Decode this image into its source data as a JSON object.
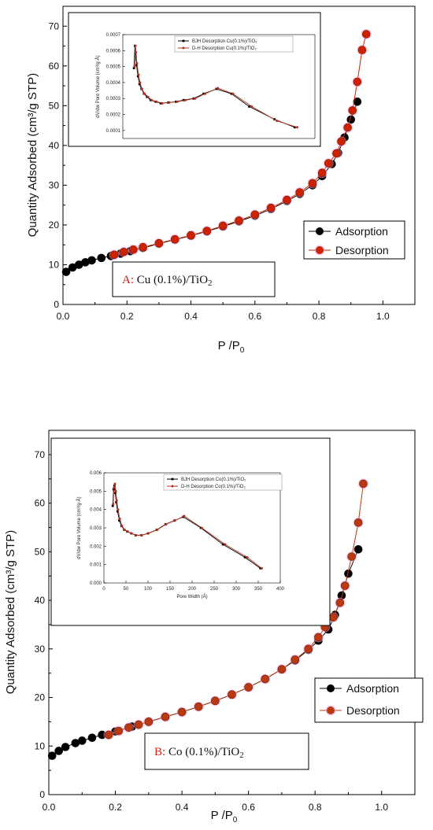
{
  "chart_data": [
    {
      "id": "A",
      "type": "scatter",
      "xlabel_main": "P /P",
      "xlabel_sub": "0",
      "ylabel": "Quantity Adsorbed (cm³/g STP)",
      "xlim": [
        0,
        1.1
      ],
      "ylim": [
        0,
        75
      ],
      "xticks": [
        "0.0",
        "0.2",
        "0.4",
        "0.6",
        "0.8",
        "1.0"
      ],
      "yticks": [
        "0",
        "10",
        "20",
        "30",
        "40",
        "50",
        "60",
        "70"
      ],
      "annotation_letter": "A:",
      "annotation_text": " Cu (0.1%)/TiO",
      "annotation_sub": "2",
      "legend": [
        "Adsorption",
        "Desorption"
      ],
      "series": [
        {
          "name": "Adsorption",
          "color": "#000000",
          "x": [
            0.01,
            0.03,
            0.05,
            0.07,
            0.09,
            0.12,
            0.15,
            0.18,
            0.21,
            0.25,
            0.3,
            0.35,
            0.4,
            0.45,
            0.5,
            0.55,
            0.6,
            0.65,
            0.7,
            0.74,
            0.78,
            0.81,
            0.84,
            0.86,
            0.88,
            0.9,
            0.92
          ],
          "y": [
            8.2,
            9.3,
            10,
            10.6,
            11.1,
            11.7,
            12.2,
            12.8,
            13.4,
            14.2,
            15.3,
            16.3,
            17.3,
            18.4,
            19.6,
            20.9,
            22.3,
            24,
            26,
            27.8,
            30,
            32.3,
            35.3,
            38.1,
            42,
            46.5,
            51
          ]
        },
        {
          "name": "Desorption",
          "color": "#cc2200",
          "x": [
            0.16,
            0.19,
            0.22,
            0.25,
            0.3,
            0.35,
            0.4,
            0.45,
            0.5,
            0.55,
            0.6,
            0.65,
            0.7,
            0.74,
            0.78,
            0.81,
            0.83,
            0.855,
            0.87,
            0.89,
            0.905,
            0.92,
            0.935,
            0.948
          ],
          "y": [
            12.5,
            13.2,
            13.8,
            14.4,
            15.4,
            16.4,
            17.4,
            18.5,
            19.8,
            21.1,
            22.6,
            24.3,
            26.3,
            28.2,
            30.5,
            33.1,
            35.5,
            38,
            41,
            44.5,
            48.8,
            56,
            64,
            68
          ]
        }
      ],
      "inset": {
        "ylabel": "dV/dw Pore Volume (cm³/g·Å)",
        "ylim": [
          5e-05,
          0.0007
        ],
        "xlim": [
          0,
          380
        ],
        "yticks": [
          "0.0001",
          "0.0002",
          "0.0003",
          "0.0004",
          "0.0005",
          "0.0006",
          "0.0007"
        ],
        "legend": [
          "BJH Desorption Cu(0.1%)/TiO₂",
          "D-H Desorption Cu(0.1%)/TiO₂"
        ],
        "series": [
          {
            "name": "BJH Desorption Cu(0.1%)/TiO₂",
            "color": "#000000",
            "x": [
              22,
              24,
              25,
              27,
              30,
              33,
              37,
              42,
              48,
              55,
              65,
              75,
              90,
              105,
              120,
              140,
              160,
              185,
              215,
              250,
              300,
              340
            ],
            "y": [
              0.00049,
              0.00063,
              0.00058,
              0.00051,
              0.00044,
              0.00039,
              0.00036,
              0.00033,
              0.00031,
              0.00029,
              0.00028,
              0.00027,
              0.000275,
              0.00028,
              0.00029,
              0.0003,
              0.00033,
              0.00036,
              0.00033,
              0.00025,
              0.00017,
              0.00012
            ]
          },
          {
            "name": "D-H Desorption Cu(0.1%)/TiO₂",
            "color": "#b03020",
            "x": [
              23,
              25,
              26,
              28,
              31,
              34,
              38,
              43,
              50,
              57,
              67,
              78,
              92,
              108,
              124,
              143,
              163,
              188,
              218,
              255,
              305,
              345
            ],
            "y": [
              0.0005,
              0.00063,
              0.00059,
              0.00052,
              0.00045,
              0.0004,
              0.00036,
              0.00033,
              0.00031,
              0.00029,
              0.00028,
              0.00027,
              0.000275,
              0.00028,
              0.00029,
              0.0003,
              0.00033,
              0.000365,
              0.00033,
              0.00025,
              0.00016,
              0.00012
            ]
          }
        ]
      }
    },
    {
      "id": "B",
      "type": "scatter",
      "xlabel_main": "P /P",
      "xlabel_sub": "0",
      "ylabel": "Quantity Adsorbed (cm³/g STP)",
      "xlim": [
        0,
        1.1
      ],
      "ylim": [
        0,
        75
      ],
      "xticks": [
        "0.0",
        "0.2",
        "0.4",
        "0.6",
        "0.8",
        "1.0"
      ],
      "yticks": [
        "0",
        "10",
        "20",
        "30",
        "40",
        "50",
        "60",
        "70"
      ],
      "annotation_letter": "B:",
      "annotation_text": " Co (0.1%)/TiO",
      "annotation_sub": "2",
      "legend": [
        "Adsorption",
        "Desorption"
      ],
      "series": [
        {
          "name": "Adsorption",
          "color": "#000000",
          "x": [
            0.01,
            0.03,
            0.05,
            0.08,
            0.1,
            0.13,
            0.16,
            0.2,
            0.25,
            0.3,
            0.35,
            0.4,
            0.45,
            0.5,
            0.55,
            0.6,
            0.65,
            0.7,
            0.74,
            0.78,
            0.81,
            0.84,
            0.86,
            0.88,
            0.9,
            0.93
          ],
          "y": [
            8,
            9,
            9.8,
            10.6,
            11.1,
            11.7,
            12.3,
            13,
            14,
            15,
            16,
            17,
            18.1,
            19.3,
            20.6,
            22.1,
            23.8,
            25.8,
            27.6,
            29.8,
            31.7,
            34,
            37,
            41,
            45.5,
            50.5
          ]
        },
        {
          "name": "Desorption",
          "color": "#b83a10",
          "x": [
            0.18,
            0.21,
            0.24,
            0.27,
            0.3,
            0.35,
            0.4,
            0.45,
            0.5,
            0.55,
            0.6,
            0.65,
            0.7,
            0.74,
            0.78,
            0.81,
            0.83,
            0.855,
            0.875,
            0.89,
            0.91,
            0.93,
            0.945
          ],
          "y": [
            12.3,
            13.1,
            13.8,
            14.4,
            15,
            16,
            17,
            18.1,
            19.3,
            20.6,
            22.1,
            23.8,
            25.8,
            27.8,
            30,
            32.4,
            34.5,
            36.5,
            39.5,
            43,
            49,
            56,
            64
          ]
        }
      ],
      "inset": {
        "ylabel": "dV/dw Pore Volume (cm³/g·Å)",
        "xlabel": "Pore Width (Å)",
        "xlim": [
          0,
          400
        ],
        "ylim": [
          0,
          0.006
        ],
        "xticks": [
          "0",
          "50",
          "100",
          "150",
          "200",
          "250",
          "300",
          "350",
          "400"
        ],
        "yticks": [
          "0.000",
          "0.001",
          "0.002",
          "0.003",
          "0.004",
          "0.005",
          "0.006"
        ],
        "legend": [
          "BJH Desorption Co(0.1%)/TiO₂",
          "D-H Desorption Co(0.1%)/TiO₂"
        ],
        "series": [
          {
            "name": "BJH Desorption Co(0.1%)/TiO₂",
            "color": "#000000",
            "x": [
              20,
              22,
              24,
              26,
              28,
              31,
              35,
              40,
              46,
              53,
              62,
              72,
              85,
              100,
              120,
              140,
              160,
              180,
              220,
              270,
              320,
              355
            ],
            "y": [
              0.0042,
              0.0051,
              0.0053,
              0.0049,
              0.0044,
              0.0039,
              0.0034,
              0.0031,
              0.0029,
              0.0028,
              0.0027,
              0.0026,
              0.0026,
              0.0027,
              0.0029,
              0.0032,
              0.0034,
              0.0036,
              0.003,
              0.0021,
              0.0014,
              0.0008
            ]
          },
          {
            "name": "D-H Desorption Co(0.1%)/TiO₂",
            "color": "#b03020",
            "x": [
              21,
              23,
              25,
              27,
              29,
              32,
              36,
              41,
              47,
              54,
              63,
              73,
              86,
              101,
              121,
              141,
              161,
              182,
              222,
              275,
              325,
              358
            ],
            "y": [
              0.0043,
              0.0052,
              0.0054,
              0.005,
              0.0045,
              0.004,
              0.0035,
              0.0031,
              0.0029,
              0.0028,
              0.0027,
              0.0026,
              0.0026,
              0.0027,
              0.0029,
              0.0032,
              0.0034,
              0.00365,
              0.003,
              0.0021,
              0.0014,
              0.0008
            ]
          }
        ]
      }
    }
  ]
}
